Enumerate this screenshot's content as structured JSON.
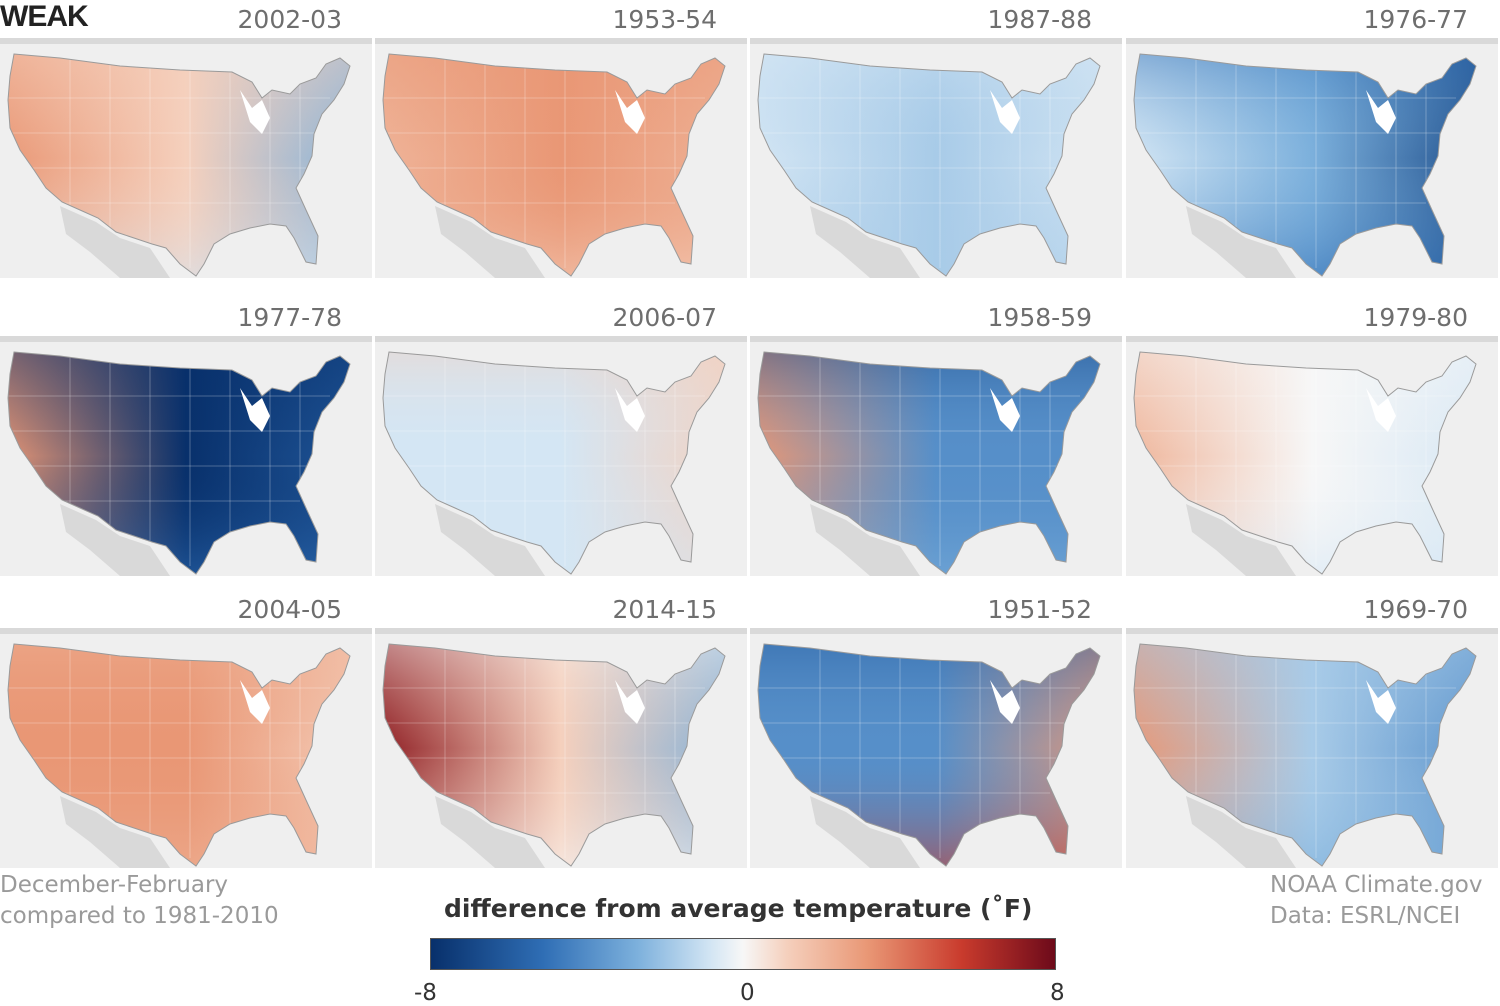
{
  "heading": "WEAK",
  "footer_left": [
    "December-February",
    "compared to 1981-2010"
  ],
  "footer_right": [
    "NOAA Climate.gov",
    "Data: ESRL/NCEI"
  ],
  "legend": {
    "title": "difference from average temperature (˚F)",
    "ticks": [
      "-8",
      "0",
      "8"
    ]
  },
  "colors": {
    "cold": "#08306b",
    "neutral": "#f7f7f7",
    "warm": "#6d0a1a",
    "land": "#d9d9d9"
  },
  "panels": [
    {
      "year": "2002-03",
      "west": 3,
      "central": 1,
      "east": -3,
      "north": 1,
      "south": -1
    },
    {
      "year": "1953-54",
      "west": 2,
      "central": 3,
      "east": 2,
      "north": 3,
      "south": 1
    },
    {
      "year": "1987-88",
      "west": -1,
      "central": -2,
      "east": -1,
      "north": -1,
      "south": -2
    },
    {
      "year": "1976-77",
      "west": -1,
      "central": -3,
      "east": -7,
      "north": -5,
      "south": -5
    },
    {
      "year": "1977-78",
      "west": 3,
      "central": -8,
      "east": -6,
      "north": -8,
      "south": -5
    },
    {
      "year": "2006-07",
      "west": -1,
      "central": -1,
      "east": 1,
      "north": 1,
      "south": -1
    },
    {
      "year": "1958-59",
      "west": 3,
      "central": -4,
      "east": -4,
      "north": -7,
      "south": -3
    },
    {
      "year": "1979-80",
      "west": 2,
      "central": 0,
      "east": -1,
      "north": 0,
      "south": -1
    },
    {
      "year": "2004-05",
      "west": 3,
      "central": 3,
      "east": 1,
      "north": 2,
      "south": 2
    },
    {
      "year": "2014-15",
      "west": 7,
      "central": 1,
      "east": -3,
      "north": 0,
      "south": 0
    },
    {
      "year": "1951-52",
      "west": -4,
      "central": -4,
      "east": 3,
      "north": -6,
      "south": 5
    },
    {
      "year": "1969-70",
      "west": 3,
      "central": -2,
      "east": -4,
      "north": -2,
      "south": -3
    }
  ]
}
